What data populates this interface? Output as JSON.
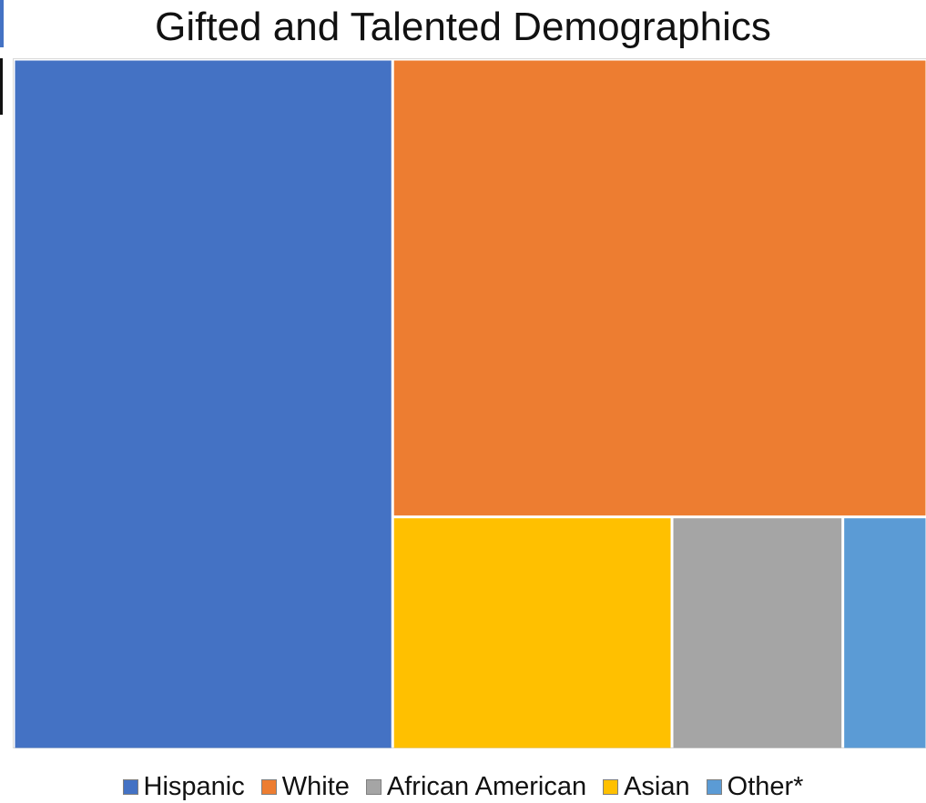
{
  "chart_data": {
    "type": "treemap",
    "title": "Gifted and Talented Demographics",
    "series": [
      {
        "name": "Hispanic",
        "value": 41.5,
        "color": "#4472c4"
      },
      {
        "name": "White",
        "value": 38.8,
        "color": "#ed7d31"
      },
      {
        "name": "Asian",
        "value": 10.3,
        "color": "#ffc000"
      },
      {
        "name": "African American",
        "value": 6.3,
        "color": "#a5a5a5"
      },
      {
        "name": "Other*",
        "value": 3.1,
        "color": "#5b9bd5"
      }
    ],
    "legend_order": [
      "Hispanic",
      "White",
      "African American",
      "Asian",
      "Other*"
    ],
    "legend_position": "bottom"
  }
}
